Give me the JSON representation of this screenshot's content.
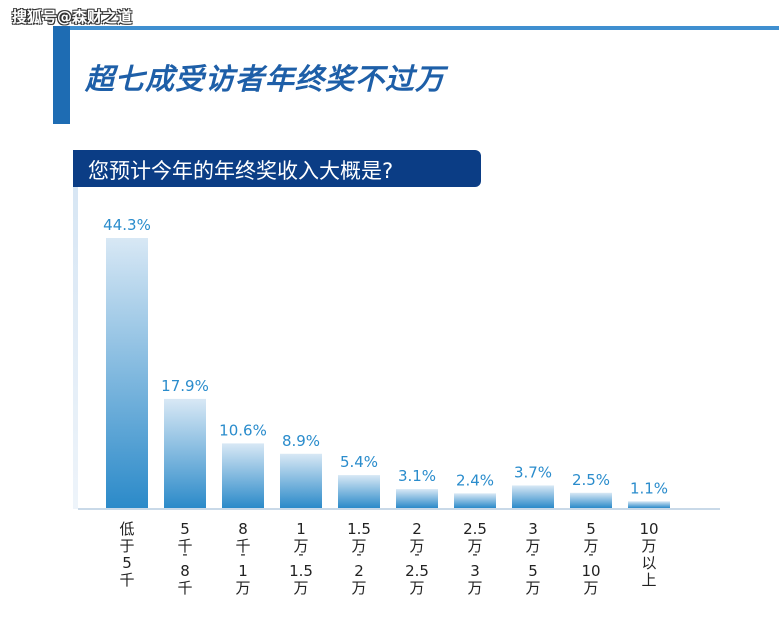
{
  "watermark": "搜狐号@森财之道",
  "title": "超七成受访者年终奖不过万",
  "question": "您预计今年的年终奖收入大概是?",
  "colors": {
    "accent": "#1e6cb3",
    "question_bg": "#0b3d85",
    "bar_top": "#d8e8f5",
    "bar_bottom": "#2b8ac9",
    "value_label": "#2a8ccc"
  },
  "chart_data": {
    "type": "bar",
    "title": "超七成受访者年终奖不过万",
    "subtitle": "您预计今年的年终奖收入大概是?",
    "categories": [
      [
        "低",
        "于",
        "5",
        "千"
      ],
      [
        "5",
        "千",
        "-",
        "8",
        "千"
      ],
      [
        "8",
        "千",
        "-",
        "1",
        "万"
      ],
      [
        "1",
        "万",
        "-",
        "1.5",
        "万"
      ],
      [
        "1.5",
        "万",
        "-",
        "2",
        "万"
      ],
      [
        "2",
        "万",
        "-",
        "2.5",
        "万"
      ],
      [
        "2.5",
        "万",
        "-",
        "3",
        "万"
      ],
      [
        "3",
        "万",
        "-",
        "5",
        "万"
      ],
      [
        "5",
        "万",
        "-",
        "10",
        "万"
      ],
      [
        "10",
        "万",
        "以",
        "上"
      ]
    ],
    "values": [
      44.3,
      17.9,
      10.6,
      8.9,
      5.4,
      3.1,
      2.4,
      3.7,
      2.5,
      1.1
    ],
    "value_labels": [
      "44.3%",
      "17.9%",
      "10.6%",
      "8.9%",
      "5.4%",
      "3.1%",
      "2.4%",
      "3.7%",
      "2.5%",
      "1.1%"
    ],
    "unit": "%",
    "ylim": [
      0,
      44.3
    ],
    "grid": false,
    "legend": "none"
  }
}
